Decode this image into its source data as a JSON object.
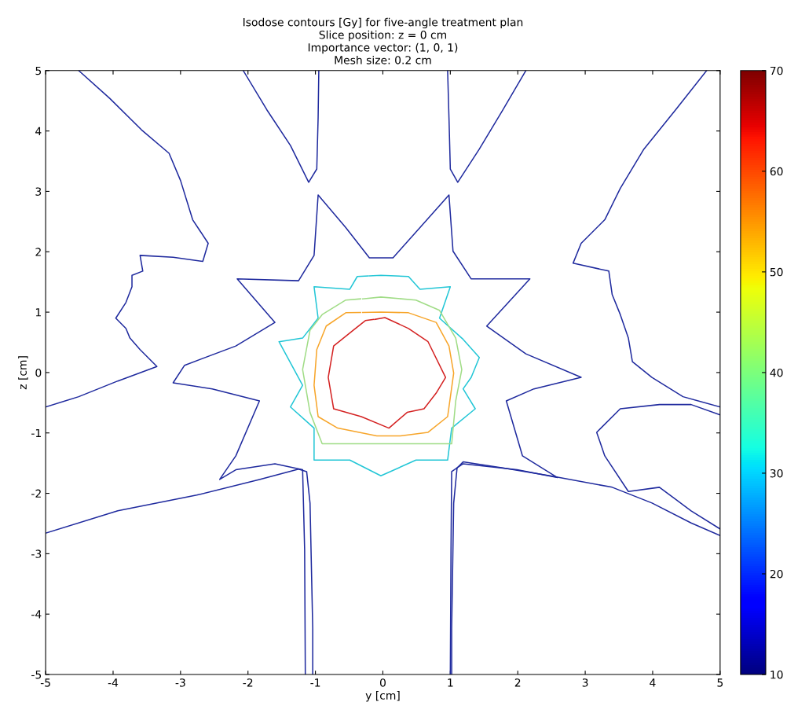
{
  "chart_data": {
    "type": "line",
    "title": "Isodose contours [Gy] for five-angle treatment plan",
    "subtitle": "Slice position: z = 0 cm\nImportance vector: (1, 0, 1)\nMesh size: 0.2 cm",
    "xlabel": "y [cm]",
    "ylabel": "z [cm]",
    "xlim": [
      -5,
      5
    ],
    "ylim": [
      -5,
      5
    ],
    "xticks": [
      -5,
      -4,
      -3,
      -2,
      -1,
      0,
      1,
      2,
      3,
      4,
      5
    ],
    "yticks": [
      -5,
      -4,
      -3,
      -2,
      -1,
      0,
      1,
      2,
      3,
      4,
      5
    ],
    "clim": [
      10,
      70
    ],
    "cticks": [
      10,
      20,
      30,
      40,
      50,
      60,
      70
    ],
    "grid": false,
    "marker": "none",
    "line_style": "solid",
    "series": [
      {
        "color": "#1f2a9e",
        "x": [
          -5,
          -4.51,
          -3.93,
          -3.35,
          -3.6,
          -3.75,
          -3.81,
          -3.96,
          -3.81,
          -3.72,
          -3.72,
          -3.56,
          -3.6,
          -3.11,
          -2.67,
          -2.59,
          -2.82,
          -3.0,
          -3.17,
          -3.58,
          -4.05,
          -4.51
        ],
        "values": [
          -0.57,
          -0.4,
          -0.14,
          0.1,
          0.38,
          0.57,
          0.73,
          0.9,
          1.16,
          1.42,
          1.61,
          1.68,
          1.94,
          1.91,
          1.84,
          2.14,
          2.53,
          3.18,
          3.63,
          4.02,
          4.54,
          5
        ]
      },
      {
        "color": "#1f2a9e",
        "x": [
          -2.07,
          -1.72,
          -1.37,
          -1.1,
          -0.98,
          -0.96,
          -0.95
        ],
        "values": [
          5,
          4.35,
          3.76,
          3.15,
          3.37,
          4.22,
          5
        ]
      },
      {
        "color": "#1f2a9e",
        "x": [
          0.96,
          0.98,
          1.0,
          1.11,
          1.43,
          1.78,
          2.12
        ],
        "values": [
          5,
          4.22,
          3.37,
          3.15,
          3.7,
          4.35,
          5
        ]
      },
      {
        "color": "#1f2a9e",
        "x": [
          4.8,
          4.34,
          3.87,
          3.52,
          3.29,
          2.94,
          2.82,
          3.35,
          3.4,
          3.52,
          3.64,
          3.7,
          3.99,
          4.45,
          5
        ],
        "values": [
          5,
          4.35,
          3.7,
          3.05,
          2.53,
          2.14,
          1.81,
          1.68,
          1.29,
          0.96,
          0.57,
          0.18,
          -0.08,
          -0.4,
          -0.57
        ]
      },
      {
        "color": "#1f2a9e",
        "x": [
          5,
          4.57,
          4.1,
          3.52,
          3.17,
          3.29,
          3.64,
          4.1,
          4.34,
          4.57,
          5
        ],
        "values": [
          -0.7,
          -0.53,
          -0.53,
          -0.6,
          -0.99,
          -1.38,
          -1.97,
          -1.9,
          -2.1,
          -2.29,
          -2.59
        ]
      },
      {
        "color": "#1f2a9e",
        "x": [
          5,
          4.57,
          3.99,
          3.4,
          2.48,
          1.78,
          1.19,
          1.1,
          1.05,
          1.02,
          1.02
        ],
        "values": [
          -2.7,
          -2.49,
          -2.16,
          -1.9,
          -1.71,
          -1.58,
          -1.48,
          -1.58,
          -2.16,
          -4.24,
          -5
        ]
      },
      {
        "color": "#1f2a9e",
        "x": [
          -5,
          -3.93,
          -2.76,
          -1.83,
          -1.25,
          -1.13,
          -1.08,
          -1.04,
          -1.04
        ],
        "values": [
          -2.66,
          -2.29,
          -2.03,
          -1.77,
          -1.6,
          -1.64,
          -2.16,
          -4.24,
          -5
        ]
      },
      {
        "color": "#1f2a9e",
        "x": [
          -1.15,
          -1.16,
          -1.19,
          -1.6,
          -2.18,
          -2.42,
          -2.18,
          -1.83,
          -2.53,
          -3.11,
          -2.94,
          -2.18,
          -1.6,
          -2.16,
          -1.25,
          -1.02,
          -0.96,
          -0.55,
          -0.2,
          0.15,
          0.55,
          0.98,
          1.04,
          1.31,
          2.18,
          1.54,
          2.12,
          2.94,
          2.24,
          1.83,
          2.07,
          2.59,
          1.99,
          1.19,
          1.02,
          1.01,
          1.0
        ],
        "values": [
          -5,
          -2.94,
          -1.61,
          -1.51,
          -1.61,
          -1.77,
          -1.38,
          -0.47,
          -0.27,
          -0.17,
          0.12,
          0.44,
          0.83,
          1.55,
          1.52,
          1.94,
          2.94,
          2.4,
          1.9,
          1.9,
          2.4,
          2.94,
          2.01,
          1.55,
          1.55,
          0.77,
          0.31,
          -0.08,
          -0.27,
          -0.47,
          -1.38,
          -1.74,
          -1.61,
          -1.51,
          -1.64,
          -2.94,
          -5
        ]
      },
      {
        "color": "#22c6d6",
        "x": [
          -0.2,
          -0.03,
          0.38,
          0.55,
          1.0,
          0.84,
          1.19,
          1.43,
          1.31,
          1.19,
          1.37,
          1.02,
          0.96,
          0.49,
          -0.03,
          -0.49,
          -1.02,
          -1.02,
          -1.37,
          -1.19,
          -1.54,
          -1.19,
          -0.96,
          -1.02,
          -0.49,
          -0.38,
          -0.22
        ],
        "values": [
          1.6,
          1.61,
          1.59,
          1.38,
          1.42,
          0.9,
          0.55,
          0.25,
          -0.08,
          -0.27,
          -0.6,
          -0.92,
          -1.45,
          -1.45,
          -1.71,
          -1.45,
          -1.45,
          -0.92,
          -0.57,
          -0.21,
          0.51,
          0.57,
          0.9,
          1.42,
          1.38,
          1.59,
          1.6
        ]
      },
      {
        "color": "#a0dc86",
        "x": [
          -0.3,
          -0.03,
          0.49,
          0.84,
          1.08,
          1.17,
          1.08,
          1.02,
          -0.09,
          -0.9,
          -1.08,
          -1.19,
          -1.08,
          -0.9,
          -0.55,
          -0.33
        ],
        "values": [
          1.22,
          1.25,
          1.2,
          1.03,
          0.57,
          0.05,
          -0.47,
          -1.18,
          -1.18,
          -1.18,
          -0.66,
          0.05,
          0.7,
          0.96,
          1.2,
          1.22
        ]
      },
      {
        "color": "#f7a52a",
        "x": [
          -0.3,
          -0.03,
          0.38,
          0.79,
          0.98,
          1.05,
          0.96,
          0.67,
          0.26,
          -0.09,
          -0.67,
          -0.96,
          -1.02,
          -0.98,
          -0.84,
          -0.55,
          -0.33
        ],
        "values": [
          0.995,
          1.0,
          0.99,
          0.83,
          0.44,
          -0.01,
          -0.73,
          -0.99,
          -1.05,
          -1.05,
          -0.92,
          -0.73,
          -0.21,
          0.38,
          0.77,
          0.99,
          0.995
        ]
      },
      {
        "color": "#d42222",
        "x": [
          -0.12,
          0.03,
          0.38,
          0.67,
          0.93,
          0.79,
          0.61,
          0.36,
          0.09,
          -0.32,
          -0.73,
          -0.81,
          -0.73,
          -0.44,
          -0.26,
          -0.14
        ],
        "values": [
          0.88,
          0.91,
          0.73,
          0.51,
          -0.08,
          -0.34,
          -0.6,
          -0.66,
          -0.92,
          -0.73,
          -0.6,
          -0.08,
          0.44,
          0.7,
          0.86,
          0.88
        ]
      }
    ]
  }
}
